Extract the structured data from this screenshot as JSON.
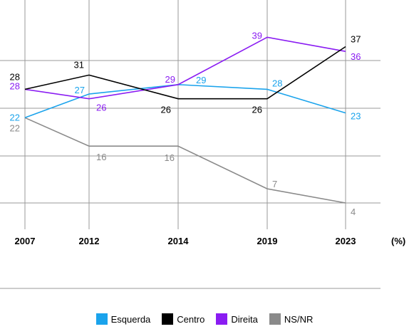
{
  "chart_data": {
    "type": "line",
    "x": [
      "2007",
      "2012",
      "2014",
      "2019",
      "2023"
    ],
    "unit_label": "(%)",
    "ylim": [
      0,
      50
    ],
    "series": [
      {
        "name": "Esquerda",
        "color": "#1aa3ec",
        "values": [
          22,
          27,
          29,
          28,
          23
        ]
      },
      {
        "name": "Centro",
        "color": "#000000",
        "values": [
          28,
          31,
          26,
          26,
          37
        ]
      },
      {
        "name": "Direita",
        "color": "#8a1cf2",
        "values": [
          28,
          26,
          29,
          39,
          36
        ]
      },
      {
        "name": "NS/NR",
        "color": "#8a8a8a",
        "values": [
          22,
          16,
          16,
          7,
          4
        ]
      }
    ]
  }
}
